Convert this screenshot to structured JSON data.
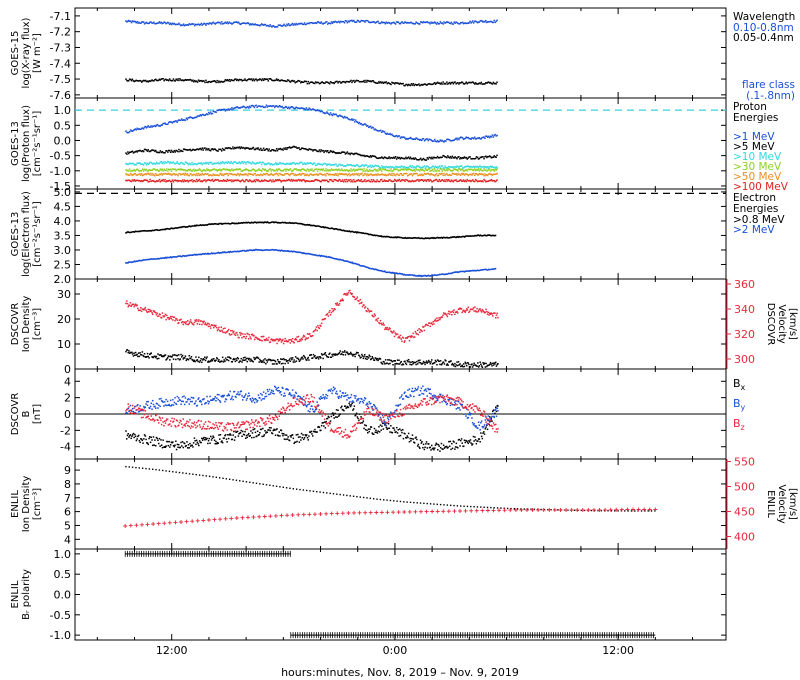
{
  "chart_data": {
    "type": "line",
    "x_axis": {
      "label": "hours:minutes, Nov.  8, 2019 – Nov.  9, 2019",
      "ticks": [
        "12:00",
        "0:00",
        "12:00"
      ],
      "tick_hours": [
        12,
        24,
        36
      ]
    },
    "panels": [
      {
        "id": "goes15-xray",
        "ylabel": [
          "GOES-15",
          "log(X-ray flux)",
          "[W m⁻²]"
        ],
        "ylim": [
          -7.62,
          -7.05
        ],
        "yticks": [
          -7.1,
          -7.2,
          -7.3,
          -7.4,
          -7.5,
          -7.6
        ],
        "ytick_labels": [
          "-7.1",
          "-7.2",
          "-7.3",
          "-7.4",
          "-7.5",
          "-7.6"
        ],
        "legend_title": [
          "Wavelength"
        ],
        "legend_note": [
          "flare class",
          "(.1-.8nm)"
        ],
        "series": [
          {
            "name": "0.10-0.8nm",
            "color": "#1a50d8",
            "mode": "points",
            "t_range": [
              9.5,
              29.5
            ],
            "values": [
              -7.13,
              -7.14,
              -7.14,
              -7.15,
              -7.15,
              -7.14,
              -7.14,
              -7.15,
              -7.16,
              -7.15,
              -7.14,
              -7.14,
              -7.13,
              -7.13,
              -7.14,
              -7.14,
              -7.14,
              -7.14,
              -7.14,
              -7.13,
              -7.13
            ]
          },
          {
            "name": "0.05-0.4nm",
            "color": "#000000",
            "mode": "points",
            "t_range": [
              9.5,
              29.5
            ],
            "values": [
              -7.5,
              -7.51,
              -7.5,
              -7.5,
              -7.51,
              -7.51,
              -7.5,
              -7.5,
              -7.5,
              -7.51,
              -7.52,
              -7.52,
              -7.51,
              -7.51,
              -7.52,
              -7.53,
              -7.53,
              -7.52,
              -7.52,
              -7.52,
              -7.52
            ]
          }
        ]
      },
      {
        "id": "goes13-proton",
        "ylabel": [
          "GOES-13",
          "log(Proton flux)",
          "[cm⁻²s⁻¹sr⁻¹]"
        ],
        "ylim": [
          -1.6,
          1.4
        ],
        "yticks": [
          1.0,
          0.5,
          0.0,
          -0.5,
          -1.0,
          -1.5
        ],
        "ytick_labels": [
          "1.0",
          "0.5",
          "0.0",
          "-0.5",
          "-1.0",
          "-1.5"
        ],
        "legend_title": [
          "Proton",
          "Energies"
        ],
        "reference_line": {
          "value": 1.0,
          "color": "#38d0e0"
        },
        "series": [
          {
            "name": ">1 MeV",
            "color": "#1a50d8",
            "mode": "points",
            "t_range": [
              9.5,
              29.5
            ],
            "values": [
              0.3,
              0.45,
              0.55,
              0.7,
              0.85,
              1.0,
              1.1,
              1.15,
              1.15,
              1.1,
              1.05,
              0.9,
              0.75,
              0.5,
              0.25,
              0.1,
              0.05,
              0.0,
              0.1,
              0.1,
              0.2
            ]
          },
          {
            "name": ">5 MeV",
            "color": "#000000",
            "mode": "points",
            "t_range": [
              9.5,
              29.5
            ],
            "values": [
              -0.4,
              -0.3,
              -0.35,
              -0.3,
              -0.25,
              -0.3,
              -0.2,
              -0.25,
              -0.3,
              -0.2,
              -0.3,
              -0.35,
              -0.4,
              -0.5,
              -0.55,
              -0.55,
              -0.6,
              -0.5,
              -0.55,
              -0.55,
              -0.5
            ]
          },
          {
            "name": ">10 MeV",
            "color": "#30d8e0",
            "mode": "points",
            "t_range": [
              9.5,
              29.5
            ],
            "values": [
              -0.75,
              -0.75,
              -0.7,
              -0.72,
              -0.75,
              -0.72,
              -0.7,
              -0.72,
              -0.75,
              -0.72,
              -0.75,
              -0.78,
              -0.8,
              -0.82,
              -0.85,
              -0.85,
              -0.85,
              -0.85,
              -0.85,
              -0.85,
              -0.85
            ]
          },
          {
            "name": ">30 MeV",
            "color": "#8cd020",
            "mode": "points",
            "t_range": [
              9.5,
              29.5
            ],
            "values": [
              -0.95,
              -0.95,
              -0.95,
              -0.95,
              -0.95,
              -0.95,
              -0.95,
              -0.95,
              -0.95,
              -0.95,
              -0.95,
              -0.95,
              -0.95,
              -0.95,
              -0.95,
              -0.95,
              -0.95,
              -0.95,
              -0.95,
              -0.95,
              -0.95
            ]
          },
          {
            "name": ">50 MeV",
            "color": "#e89020",
            "mode": "points",
            "t_range": [
              9.5,
              29.5
            ],
            "values": [
              -1.1,
              -1.1,
              -1.1,
              -1.1,
              -1.1,
              -1.1,
              -1.1,
              -1.1,
              -1.1,
              -1.1,
              -1.1,
              -1.1,
              -1.1,
              -1.1,
              -1.1,
              -1.1,
              -1.1,
              -1.1,
              -1.1,
              -1.1,
              -1.1
            ]
          },
          {
            "name": ">100 MeV",
            "color": "#e02020",
            "mode": "points",
            "t_range": [
              9.5,
              29.5
            ],
            "values": [
              -1.3,
              -1.3,
              -1.3,
              -1.3,
              -1.3,
              -1.3,
              -1.3,
              -1.3,
              -1.3,
              -1.3,
              -1.3,
              -1.3,
              -1.3,
              -1.3,
              -1.3,
              -1.3,
              -1.3,
              -1.3,
              -1.3,
              -1.3,
              -1.3
            ]
          }
        ]
      },
      {
        "id": "goes13-electron",
        "ylabel": [
          "GOES-13",
          "log(Electron flux)",
          "[cm⁻²s⁻¹sr⁻¹]"
        ],
        "ylim": [
          2.0,
          5.1
        ],
        "yticks": [
          5.0,
          4.5,
          4.0,
          3.5,
          3.0,
          2.5,
          2.0
        ],
        "ytick_labels": [
          "5.0",
          "4.5",
          "4.0",
          "3.5",
          "3.0",
          "2.5",
          "2.0"
        ],
        "legend_title": [
          "Electron",
          "Energies"
        ],
        "reference_line": {
          "value": 4.95,
          "color": "#000000",
          "dashed": true
        },
        "series": [
          {
            "name": ">0.8 MeV",
            "color": "#000000",
            "mode": "line",
            "t_range": [
              9.5,
              29.5
            ],
            "values": [
              3.6,
              3.65,
              3.7,
              3.78,
              3.85,
              3.9,
              3.92,
              3.95,
              3.95,
              3.93,
              3.85,
              3.75,
              3.65,
              3.55,
              3.45,
              3.42,
              3.4,
              3.42,
              3.45,
              3.5,
              3.5
            ]
          },
          {
            "name": ">2 MeV",
            "color": "#1a50d8",
            "mode": "line",
            "t_range": [
              9.5,
              29.5
            ],
            "values": [
              2.55,
              2.65,
              2.72,
              2.78,
              2.85,
              2.9,
              2.95,
              3.0,
              3.0,
              2.95,
              2.85,
              2.75,
              2.6,
              2.4,
              2.25,
              2.15,
              2.1,
              2.15,
              2.25,
              2.3,
              2.35
            ]
          }
        ]
      },
      {
        "id": "dscovr-density-velocity",
        "ylabel": [
          "DSCOVR",
          "Ion Density",
          "[cm⁻³]"
        ],
        "ylim": [
          0,
          36
        ],
        "yticks": [
          0,
          10,
          20,
          30
        ],
        "ytick_labels": [
          "0",
          "10",
          "20",
          "30"
        ],
        "y2label": [
          "DSCOVR",
          "Velocity",
          "[km/s]"
        ],
        "y2lim": [
          292,
          364
        ],
        "y2ticks": [
          300,
          320,
          340,
          360
        ],
        "y2tick_labels": [
          "300",
          "320",
          "340",
          "360"
        ],
        "series": [
          {
            "name": "Ion Density",
            "color": "#000000",
            "axis": "left",
            "mode": "points",
            "t_range": [
              9.5,
              29.5
            ],
            "values": [
              7,
              6,
              5,
              5,
              4,
              4,
              4,
              4,
              3,
              4,
              5,
              6,
              7,
              5,
              3,
              3,
              3,
              3,
              2,
              2,
              2
            ]
          },
          {
            "name": "Velocity",
            "color": "#e8283c",
            "axis": "right",
            "mode": "points",
            "t_range": [
              9.5,
              29.5
            ],
            "values": [
              345,
              340,
              335,
              330,
              330,
              325,
              320,
              318,
              315,
              315,
              320,
              338,
              355,
              340,
              325,
              315,
              325,
              335,
              340,
              340,
              335
            ]
          }
        ]
      },
      {
        "id": "dscovr-bfield",
        "ylabel": [
          "DSCOVR",
          "B",
          "[nT]"
        ],
        "ylim": [
          -5.5,
          5.5
        ],
        "yticks": [
          4,
          2,
          0,
          -2,
          -4
        ],
        "ytick_labels": [
          "4",
          "2",
          "0",
          "-2",
          "-4"
        ],
        "legend_title": [],
        "series": [
          {
            "name": "Bx",
            "label_sub": "x",
            "color": "#000000",
            "mode": "points",
            "t_range": [
              9.5,
              29.5
            ],
            "values": [
              -2.5,
              -3.0,
              -3.5,
              -3.8,
              -3.2,
              -3.0,
              -2.5,
              -2.2,
              -2.0,
              -3.0,
              -2.5,
              -0.5,
              1.5,
              -2.0,
              -1.5,
              -2.5,
              -3.8,
              -4.0,
              -3.5,
              -3.0,
              1.0
            ]
          },
          {
            "name": "By",
            "label_sub": "y",
            "color": "#1a50d8",
            "mode": "points",
            "t_range": [
              9.5,
              29.5
            ],
            "values": [
              0.5,
              1.0,
              1.5,
              1.8,
              1.5,
              2.0,
              2.5,
              2.0,
              3.0,
              2.5,
              0.5,
              3.0,
              2.0,
              1.5,
              -1.0,
              2.5,
              3.0,
              2.0,
              1.0,
              -1.5,
              0.5
            ]
          },
          {
            "name": "Bz",
            "label_sub": "z",
            "color": "#e8283c",
            "mode": "points",
            "t_range": [
              9.5,
              29.5
            ],
            "values": [
              1.0,
              0.0,
              -0.8,
              -1.0,
              -1.2,
              -1.5,
              -1.5,
              -1.0,
              -0.5,
              1.5,
              2.0,
              -1.5,
              -2.5,
              0.5,
              -0.5,
              0.5,
              1.5,
              2.0,
              1.5,
              0.5,
              -2.0
            ]
          }
        ]
      },
      {
        "id": "enlil-density-velocity",
        "ylabel": [
          "ENLIL",
          "Ion Density",
          "[cm⁻³]"
        ],
        "ylim": [
          3.3,
          9.8
        ],
        "yticks": [
          9,
          8,
          7,
          6,
          5,
          4
        ],
        "ytick_labels": [
          "9",
          "8",
          "7",
          "6",
          "5",
          "4"
        ],
        "y2label": [
          "ENLIL",
          "Velocity",
          "[km/s]"
        ],
        "y2lim": [
          375,
          555
        ],
        "y2ticks": [
          550,
          500,
          450,
          400
        ],
        "y2tick_labels": [
          "550",
          "500",
          "450",
          "400"
        ],
        "series": [
          {
            "name": "Ion Density",
            "color": "#000000",
            "axis": "left",
            "mode": "dotted",
            "t_range": [
              9.5,
              38.0
            ],
            "values": [
              9.3,
              9.1,
              8.85,
              8.6,
              8.3,
              8.0,
              7.7,
              7.45,
              7.2,
              6.95,
              6.75,
              6.6,
              6.45,
              6.35,
              6.25,
              6.2,
              6.15,
              6.12,
              6.1,
              6.1
            ]
          },
          {
            "name": "Velocity",
            "color": "#e8283c",
            "axis": "right",
            "mode": "crosses",
            "t_range": [
              9.5,
              38.0
            ],
            "values": [
              421,
              425,
              429,
              433,
              437,
              440,
              443,
              445,
              447,
              448,
              449,
              450,
              451,
              452,
              453,
              453,
              453,
              453,
              454,
              454
            ]
          }
        ]
      },
      {
        "id": "enlil-polarity",
        "ylabel": [
          "ENLIL",
          "Bᵣ polarity",
          ""
        ],
        "ylim": [
          -1.12,
          1.12
        ],
        "yticks": [
          1.0,
          0.5,
          0.0,
          -0.5,
          -1.0
        ],
        "ytick_labels": [
          "1.0",
          "0.5",
          "0.0",
          "-0.5",
          "-1.0"
        ],
        "series": [
          {
            "name": "Polarity",
            "color": "#000000",
            "mode": "step",
            "segments": [
              {
                "t0": 9.5,
                "t1": 18.4,
                "value": 1.0
              },
              {
                "t0": 18.4,
                "t1": 38.0,
                "value": -1.0
              }
            ]
          }
        ]
      }
    ]
  }
}
